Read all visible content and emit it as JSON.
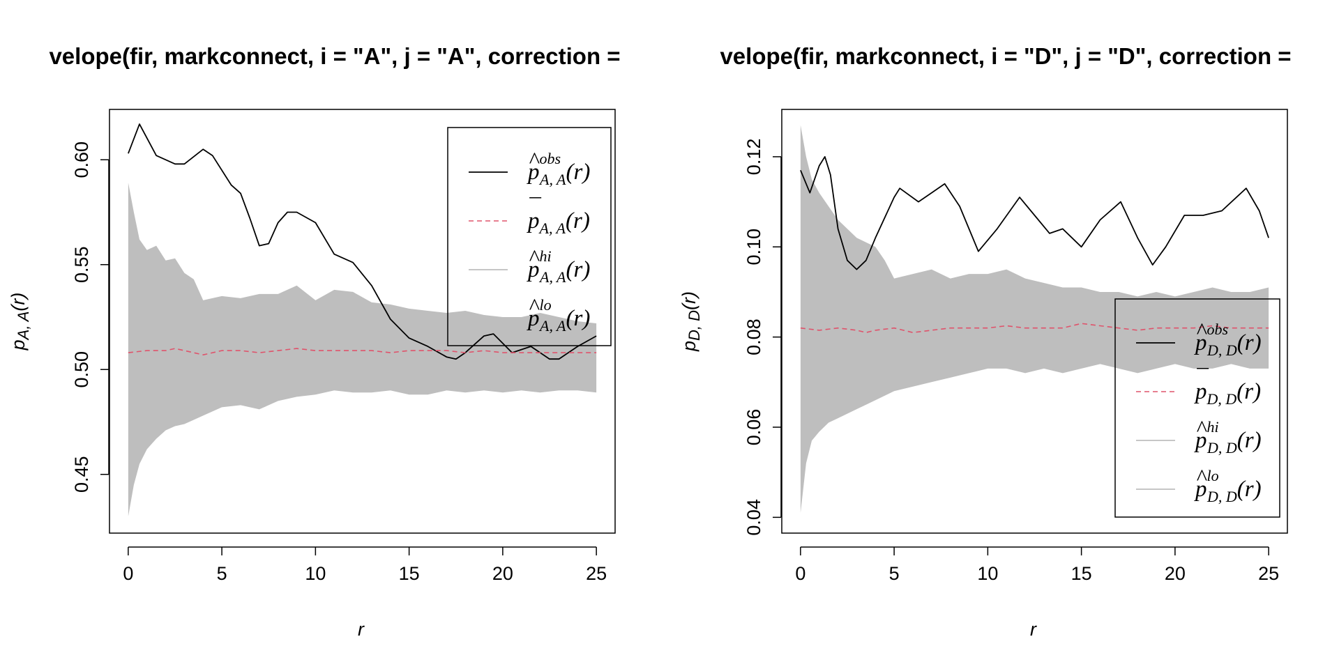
{
  "chart_data": [
    {
      "type": "line",
      "title": "velope(fir, markconnect, i = \"A\", j = \"A\", correction =",
      "xlabel": "r",
      "ylabel": {
        "base": "p",
        "sub": "A, A",
        "arg": "(r)"
      },
      "xlim": [
        -1,
        26
      ],
      "ylim": [
        0.422,
        0.624
      ],
      "xticks": [
        0,
        5,
        10,
        15,
        20,
        25
      ],
      "xtick_labels": [
        "0",
        "5",
        "10",
        "15",
        "20",
        "25"
      ],
      "yticks": [
        0.45,
        0.5,
        0.55,
        0.6
      ],
      "ytick_labels": [
        "0.45",
        "0.50",
        "0.55",
        "0.60"
      ],
      "grid": false,
      "legend": {
        "position": "top-right",
        "entries": [
          {
            "base": "p",
            "accent": "^",
            "sup": "obs",
            "sub": "A, A",
            "arg": "(r)",
            "style": "solid",
            "color": "#000000"
          },
          {
            "base": "p",
            "accent": "¯",
            "sup": "",
            "sub": "A, A",
            "arg": "(r)",
            "style": "dashed",
            "color": "#DF536B"
          },
          {
            "base": "p",
            "accent": "^",
            "sup": "hi",
            "sub": "A, A",
            "arg": "(r)",
            "style": "solid",
            "color": "#BEBEBE"
          },
          {
            "base": "p",
            "accent": "^",
            "sup": "lo",
            "sub": "A, A",
            "arg": "(r)",
            "style": "solid",
            "color": "#BEBEBE"
          }
        ]
      },
      "series": [
        {
          "name": "obs",
          "color": "#000000",
          "style": "solid",
          "x": [
            0,
            0.6,
            1.5,
            2.5,
            3,
            4,
            4.5,
            5.5,
            6,
            6.5,
            7,
            7.5,
            8,
            8.5,
            9,
            10,
            11,
            12,
            13,
            14,
            15,
            16,
            17,
            17.5,
            18,
            19,
            19.5,
            20.5,
            21.5,
            22.5,
            23,
            24,
            25
          ],
          "y": [
            0.603,
            0.617,
            0.602,
            0.598,
            0.598,
            0.605,
            0.602,
            0.588,
            0.584,
            0.572,
            0.559,
            0.56,
            0.57,
            0.575,
            0.575,
            0.57,
            0.555,
            0.551,
            0.54,
            0.524,
            0.515,
            0.511,
            0.506,
            0.505,
            0.508,
            0.516,
            0.517,
            0.508,
            0.511,
            0.505,
            0.505,
            0.511,
            0.516
          ]
        },
        {
          "name": "theo",
          "color": "#DF536B",
          "style": "dashed",
          "x": [
            0,
            1,
            2,
            2.5,
            3,
            3.5,
            4,
            5,
            6,
            7,
            8,
            9,
            10,
            11,
            12,
            13,
            14,
            15,
            16,
            17,
            18,
            19,
            20,
            21,
            22,
            23,
            24,
            25
          ],
          "y": [
            0.508,
            0.509,
            0.509,
            0.51,
            0.509,
            0.508,
            0.507,
            0.509,
            0.509,
            0.508,
            0.509,
            0.51,
            0.509,
            0.509,
            0.509,
            0.509,
            0.508,
            0.509,
            0.509,
            0.509,
            0.508,
            0.509,
            0.508,
            0.508,
            0.508,
            0.508,
            0.508,
            0.508
          ]
        },
        {
          "name": "hi",
          "color": "#BEBEBE",
          "style": "band",
          "x": [
            0,
            0.3,
            0.6,
            1,
            1.5,
            2,
            2.5,
            3,
            3.5,
            4,
            5,
            6,
            7,
            8,
            9,
            10,
            11,
            12,
            13,
            14,
            15,
            16,
            17,
            18,
            19,
            20,
            21,
            22,
            23,
            24,
            25
          ],
          "y": [
            0.589,
            0.575,
            0.562,
            0.557,
            0.559,
            0.552,
            0.553,
            0.546,
            0.543,
            0.533,
            0.535,
            0.534,
            0.536,
            0.536,
            0.54,
            0.533,
            0.538,
            0.537,
            0.532,
            0.531,
            0.529,
            0.528,
            0.527,
            0.528,
            0.526,
            0.525,
            0.525,
            0.527,
            0.525,
            0.523,
            0.522
          ]
        },
        {
          "name": "lo",
          "color": "#BEBEBE",
          "style": "band",
          "x": [
            0,
            0.3,
            0.6,
            1,
            1.5,
            2,
            2.5,
            3,
            3.5,
            4,
            5,
            6,
            7,
            8,
            9,
            10,
            11,
            12,
            13,
            14,
            15,
            16,
            17,
            18,
            19,
            20,
            21,
            22,
            23,
            24,
            25
          ],
          "y": [
            0.43,
            0.445,
            0.455,
            0.462,
            0.467,
            0.471,
            0.473,
            0.474,
            0.476,
            0.478,
            0.482,
            0.483,
            0.481,
            0.485,
            0.487,
            0.488,
            0.49,
            0.489,
            0.489,
            0.49,
            0.488,
            0.488,
            0.49,
            0.489,
            0.49,
            0.489,
            0.49,
            0.489,
            0.49,
            0.49,
            0.489
          ]
        }
      ]
    },
    {
      "type": "line",
      "title": "velope(fir, markconnect, i = \"D\", j = \"D\", correction =",
      "xlabel": "r",
      "ylabel": {
        "base": "p",
        "sub": "D, D",
        "arg": "(r)"
      },
      "xlim": [
        -1,
        26
      ],
      "ylim": [
        0.0365,
        0.1305
      ],
      "xticks": [
        0,
        5,
        10,
        15,
        20,
        25
      ],
      "xtick_labels": [
        "0",
        "5",
        "10",
        "15",
        "20",
        "25"
      ],
      "yticks": [
        0.04,
        0.06,
        0.08,
        0.1,
        0.12
      ],
      "ytick_labels": [
        "0.04",
        "0.06",
        "0.08",
        "0.10",
        "0.12"
      ],
      "grid": false,
      "legend": {
        "position": "bottom-right",
        "entries": [
          {
            "base": "p",
            "accent": "^",
            "sup": "obs",
            "sub": "D, D",
            "arg": "(r)",
            "style": "solid",
            "color": "#000000"
          },
          {
            "base": "p",
            "accent": "¯",
            "sup": "",
            "sub": "D, D",
            "arg": "(r)",
            "style": "dashed",
            "color": "#DF536B"
          },
          {
            "base": "p",
            "accent": "^",
            "sup": "hi",
            "sub": "D, D",
            "arg": "(r)",
            "style": "solid",
            "color": "#BEBEBE"
          },
          {
            "base": "p",
            "accent": "^",
            "sup": "lo",
            "sub": "D, D",
            "arg": "(r)",
            "style": "solid",
            "color": "#BEBEBE"
          }
        ]
      },
      "series": [
        {
          "name": "obs",
          "color": "#000000",
          "style": "solid",
          "x": [
            0,
            0.5,
            1,
            1.3,
            1.6,
            2,
            2.5,
            3,
            3.5,
            4,
            5,
            5.3,
            6.3,
            7,
            7.7,
            8.5,
            9.5,
            10.5,
            11.7,
            12.5,
            13.3,
            14,
            15,
            16,
            17.1,
            18,
            18.8,
            19.5,
            20.5,
            21.5,
            22.5,
            23.8,
            24.5,
            25
          ],
          "y": [
            0.117,
            0.112,
            0.118,
            0.12,
            0.116,
            0.104,
            0.097,
            0.095,
            0.097,
            0.102,
            0.111,
            0.113,
            0.11,
            0.112,
            0.114,
            0.109,
            0.099,
            0.104,
            0.111,
            0.107,
            0.103,
            0.104,
            0.1,
            0.106,
            0.11,
            0.102,
            0.096,
            0.1,
            0.107,
            0.107,
            0.108,
            0.113,
            0.108,
            0.102
          ]
        },
        {
          "name": "theo",
          "color": "#DF536B",
          "style": "dashed",
          "x": [
            0,
            1,
            2,
            3,
            3.5,
            4,
            5,
            6,
            7,
            8,
            9,
            10,
            11,
            12,
            13,
            14,
            15,
            16,
            17,
            18,
            19,
            20,
            21,
            22,
            23,
            24,
            25
          ],
          "y": [
            0.082,
            0.0815,
            0.082,
            0.0815,
            0.081,
            0.0815,
            0.082,
            0.081,
            0.0815,
            0.082,
            0.082,
            0.082,
            0.0825,
            0.082,
            0.082,
            0.082,
            0.083,
            0.0825,
            0.082,
            0.0815,
            0.082,
            0.082,
            0.082,
            0.0825,
            0.082,
            0.082,
            0.082
          ]
        },
        {
          "name": "hi",
          "color": "#BEBEBE",
          "style": "band",
          "x": [
            0,
            0.3,
            0.6,
            1,
            1.5,
            2,
            2.5,
            3,
            3.5,
            4,
            4.5,
            5,
            6,
            7,
            8,
            9,
            10,
            11,
            12,
            13,
            14,
            15,
            16,
            17,
            18,
            19,
            20,
            21,
            22,
            23,
            24,
            25
          ],
          "y": [
            0.127,
            0.12,
            0.115,
            0.112,
            0.109,
            0.106,
            0.104,
            0.102,
            0.101,
            0.1,
            0.097,
            0.093,
            0.094,
            0.095,
            0.093,
            0.094,
            0.094,
            0.095,
            0.093,
            0.092,
            0.091,
            0.091,
            0.09,
            0.09,
            0.089,
            0.09,
            0.089,
            0.09,
            0.091,
            0.09,
            0.09,
            0.091
          ]
        },
        {
          "name": "lo",
          "color": "#BEBEBE",
          "style": "band",
          "x": [
            0,
            0.3,
            0.6,
            1,
            1.5,
            2,
            2.5,
            3,
            3.5,
            4,
            4.5,
            5,
            6,
            7,
            8,
            9,
            10,
            11,
            12,
            13,
            14,
            15,
            16,
            17,
            18,
            19,
            20,
            21,
            22,
            23,
            24,
            25
          ],
          "y": [
            0.041,
            0.052,
            0.057,
            0.059,
            0.061,
            0.062,
            0.063,
            0.064,
            0.065,
            0.066,
            0.067,
            0.068,
            0.069,
            0.07,
            0.071,
            0.072,
            0.073,
            0.073,
            0.072,
            0.073,
            0.072,
            0.073,
            0.074,
            0.073,
            0.072,
            0.073,
            0.074,
            0.073,
            0.073,
            0.074,
            0.073,
            0.073
          ]
        }
      ]
    }
  ]
}
